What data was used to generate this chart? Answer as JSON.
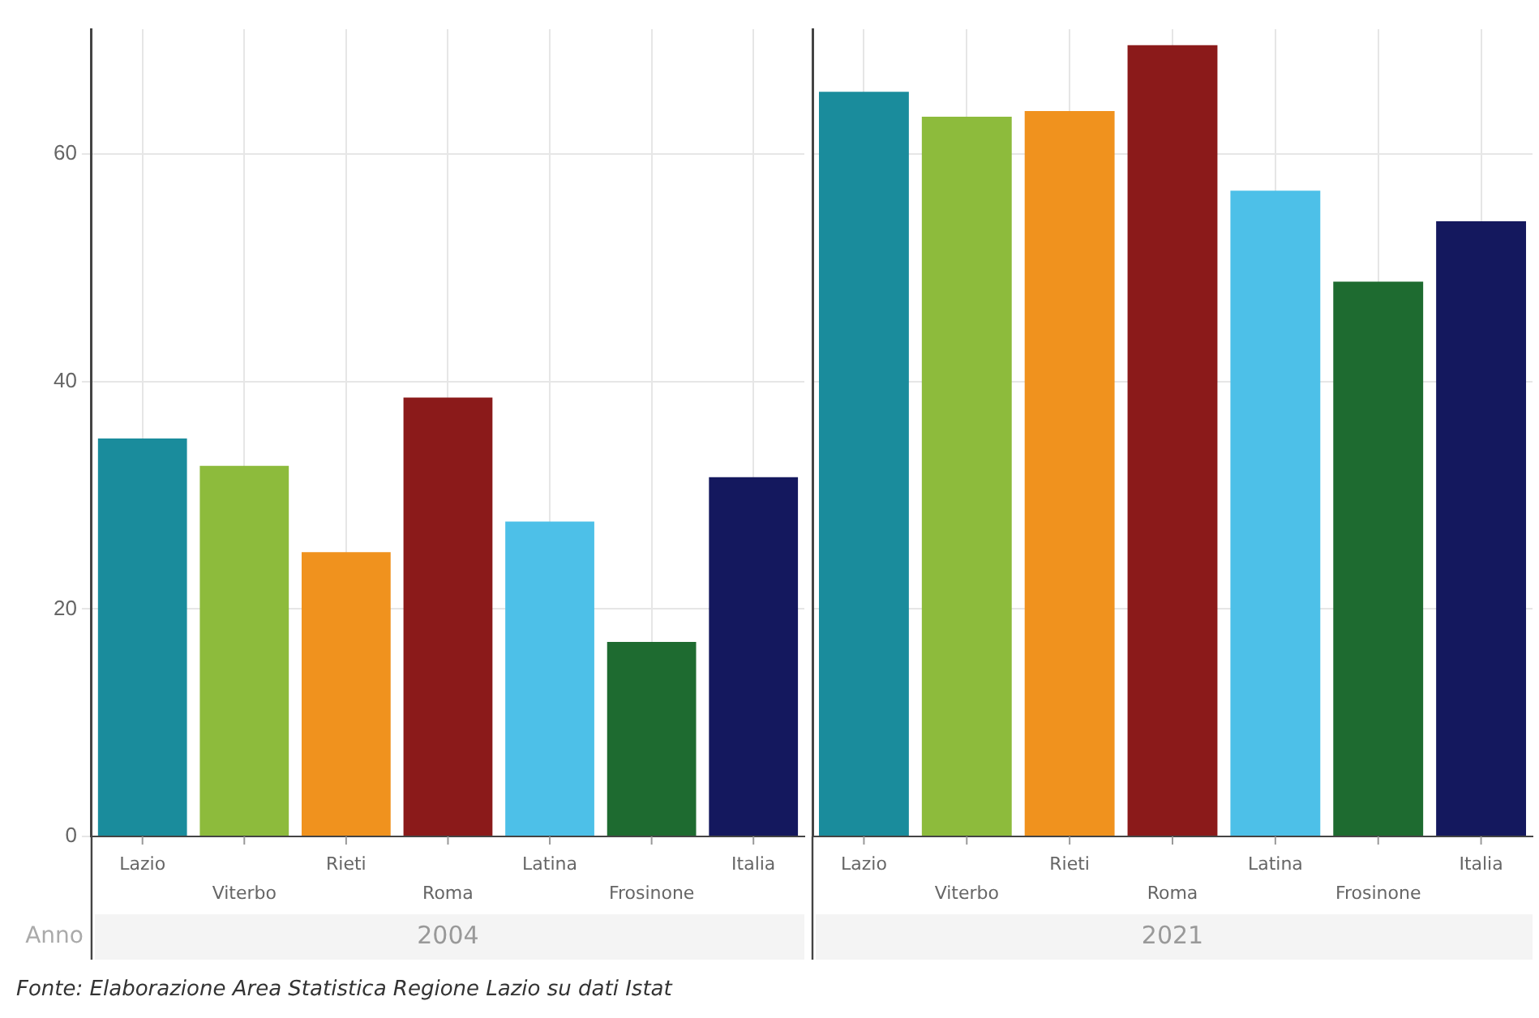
{
  "chart_data": [
    {
      "type": "bar",
      "xlabel": "2004",
      "categories": [
        "Lazio",
        "Viterbo",
        "Rieti",
        "Roma",
        "Latina",
        "Frosinone",
        "Italia"
      ],
      "values": [
        35,
        32.6,
        25,
        38.6,
        27.7,
        17.1,
        31.6
      ],
      "colors": [
        "#1a8c9c",
        "#8dbb3c",
        "#f0921e",
        "#8b1a1a",
        "#4dc0e8",
        "#1e6b30",
        "#14185e"
      ],
      "ylim": [
        0,
        71
      ],
      "yticks": [
        0,
        20,
        40,
        60
      ],
      "grid": true,
      "annotations": [
        "Anno",
        "Fonte: Elaborazione Area Statistica Regione Lazio su dati Istat"
      ]
    },
    {
      "type": "bar",
      "xlabel": "2021",
      "categories": [
        "Lazio",
        "Viterbo",
        "Rieti",
        "Roma",
        "Latina",
        "Frosinone",
        "Italia"
      ],
      "values": [
        65.5,
        63.3,
        63.8,
        69.6,
        56.8,
        48.8,
        54.1
      ],
      "colors": [
        "#1a8c9c",
        "#8dbb3c",
        "#f0921e",
        "#8b1a1a",
        "#4dc0e8",
        "#1e6b30",
        "#14185e"
      ],
      "ylim": [
        0,
        71
      ],
      "yticks": [
        0,
        20,
        40,
        60
      ],
      "grid": true,
      "tick_labels": "x"
    }
  ]
}
